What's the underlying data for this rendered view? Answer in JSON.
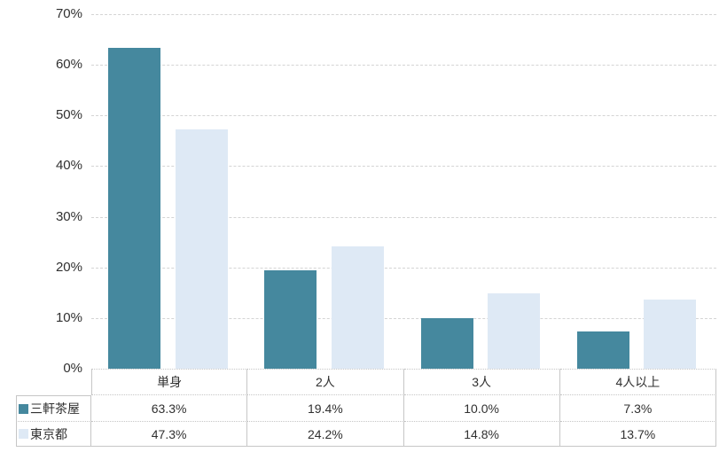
{
  "chart_data": {
    "type": "bar",
    "title": "",
    "xlabel": "",
    "ylabel": "",
    "categories": [
      "単身",
      "2人",
      "3人",
      "4人以上"
    ],
    "series": [
      {
        "name": "三軒茶屋",
        "color": "#45889E",
        "values": [
          63.3,
          19.4,
          10.0,
          7.3
        ]
      },
      {
        "name": "東京都",
        "color": "#DEE9F5",
        "values": [
          47.3,
          24.2,
          14.8,
          13.7
        ]
      }
    ],
    "ylim": [
      0,
      70
    ],
    "y_ticks": [
      "0%",
      "10%",
      "20%",
      "30%",
      "40%",
      "50%",
      "60%",
      "70%"
    ],
    "grid": "horizontal-dashed",
    "legend_position": "table-rows-left",
    "value_suffix": "%"
  },
  "table": {
    "corner_label": "",
    "column_headers": [
      "単身",
      "2人",
      "3人",
      "4人以上"
    ],
    "rows": [
      {
        "label": "三軒茶屋",
        "marker_color": "#45889E",
        "values": [
          "63.3%",
          "19.4%",
          "10.0%",
          "7.3%"
        ]
      },
      {
        "label": "東京都",
        "marker_color": "#DEE9F5",
        "values": [
          "47.3%",
          "24.2%",
          "14.8%",
          "13.7%"
        ]
      }
    ]
  },
  "colors": {
    "series_1": "#45889E",
    "series_2": "#DEE9F5",
    "gridline": "#D4D4D4",
    "table_border": "#C6C6C6",
    "text": "#303030",
    "background": "#FFFFFF"
  }
}
